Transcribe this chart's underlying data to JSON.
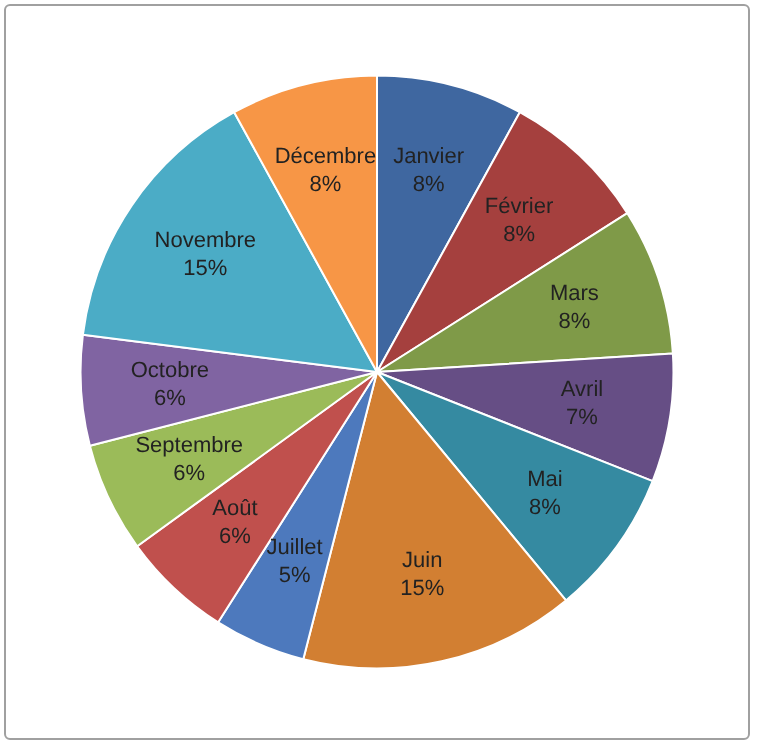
{
  "chart_data": {
    "type": "pie",
    "categories": [
      "Janvier",
      "Février",
      "Mars",
      "Avril",
      "Mai",
      "Juin",
      "Juillet",
      "Août",
      "Septembre",
      "Octobre",
      "Novembre",
      "Décembre"
    ],
    "values": [
      8,
      8,
      8,
      7,
      8,
      15,
      5,
      6,
      6,
      6,
      15,
      8
    ],
    "value_labels": [
      "8%",
      "8%",
      "8%",
      "7%",
      "8%",
      "15%",
      "5%",
      "6%",
      "6%",
      "6%",
      "15%",
      "8%"
    ],
    "colors": [
      "#3f67a0",
      "#a5403e",
      "#7f9a48",
      "#664e85",
      "#358aa1",
      "#d27f32",
      "#4d79bd",
      "#c0504d",
      "#9bbb59",
      "#8064a2",
      "#4bacc6",
      "#f79646"
    ],
    "legend": false
  }
}
